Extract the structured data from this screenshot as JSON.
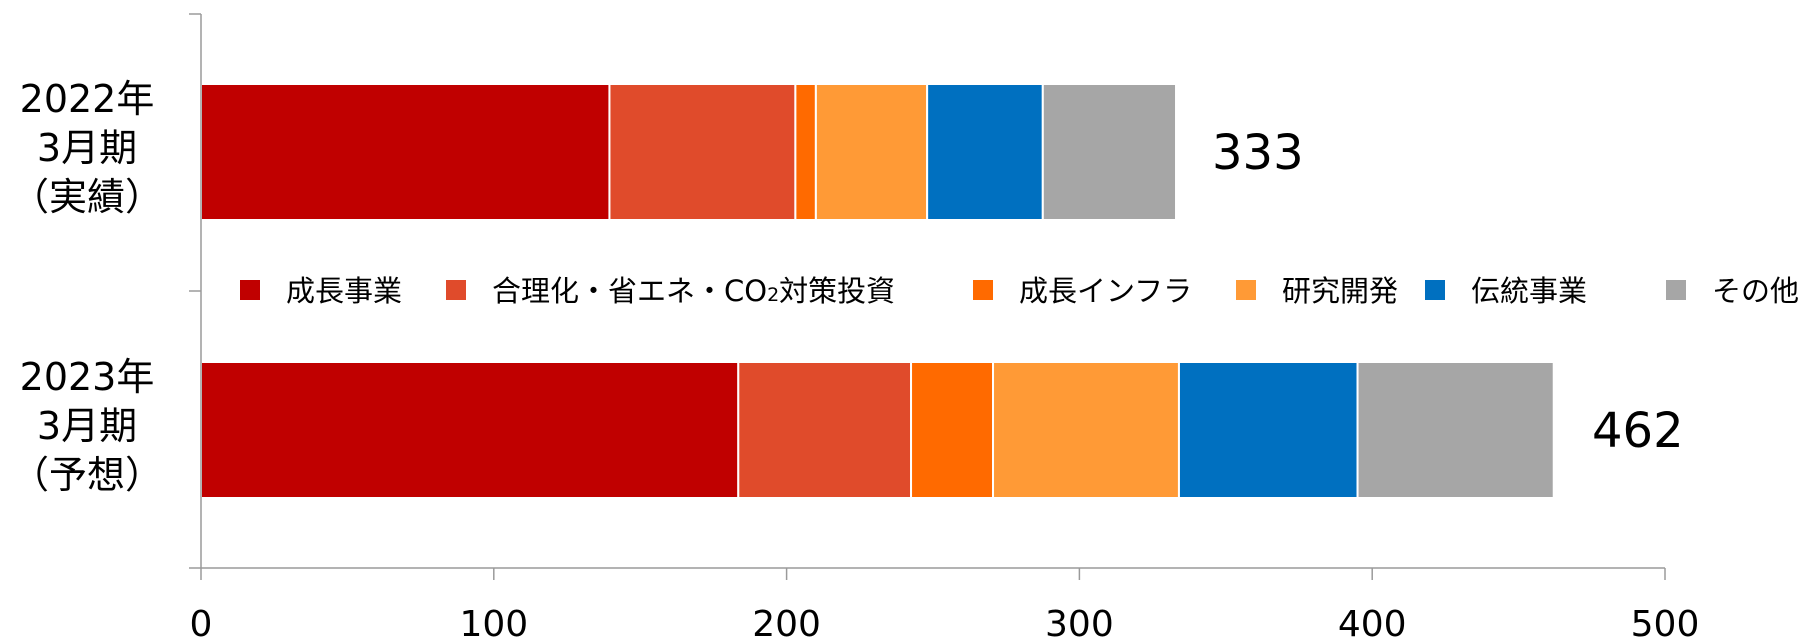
{
  "chart_data": {
    "type": "bar",
    "orientation": "horizontal",
    "stacked": true,
    "categories": [
      [
        "2022年",
        "3月期",
        "（実績）"
      ],
      [
        "2023年",
        "3月期",
        "（予想）"
      ]
    ],
    "totals": [
      "333",
      "462"
    ],
    "series": [
      {
        "name": "成長事業",
        "color": "#C00000",
        "values": [
          139.5,
          183.5
        ]
      },
      {
        "name": "合理化・省エネ・CO2対策投資",
        "name_parts": [
          "合理化・省エネ・CO",
          "2",
          "対策投資"
        ],
        "color": "#E04B2B",
        "values": [
          63.5,
          59
        ]
      },
      {
        "name": "成長インフラ",
        "color": "#FF6A00",
        "values": [
          7,
          28
        ]
      },
      {
        "name": "研究開発",
        "color": "#FF9A36",
        "values": [
          38,
          63.5
        ]
      },
      {
        "name": "伝統事業",
        "color": "#0070C0",
        "values": [
          39.5,
          61
        ]
      },
      {
        "name": "その他",
        "color": "#A6A6A6",
        "values": [
          45.5,
          67
        ]
      }
    ],
    "x_ticks": [
      "0",
      "100",
      "200",
      "300",
      "400",
      "500"
    ],
    "xlim": [
      0,
      500
    ],
    "legend_position": "middle",
    "grid": false
  }
}
